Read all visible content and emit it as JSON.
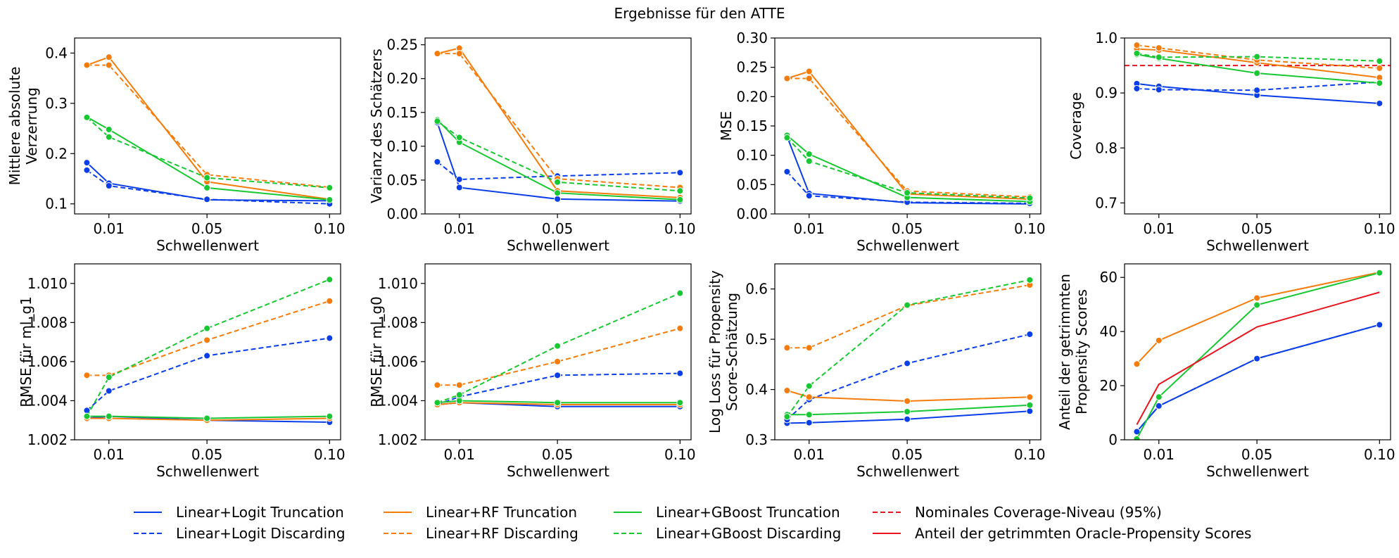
{
  "title": "Ergebnisse für den ATTE",
  "colors": {
    "logit": "#0a3ee8",
    "rf": "#f57c0a",
    "gboost": "#18c832",
    "oracle": "#e8141e",
    "nominal": "#e8141e"
  },
  "legend": {
    "placement": "bottom",
    "entries": [
      {
        "label": "Linear+Logit Truncation",
        "color": "#0a3ee8",
        "dash": false
      },
      {
        "label": "Linear+Logit Discarding",
        "color": "#0a3ee8",
        "dash": true
      },
      {
        "label": "Linear+RF Truncation",
        "color": "#f57c0a",
        "dash": false
      },
      {
        "label": "Linear+RF Discarding",
        "color": "#f57c0a",
        "dash": true
      },
      {
        "label": "Linear+GBoost Truncation",
        "color": "#18c832",
        "dash": false
      },
      {
        "label": "Linear+GBoost Discarding",
        "color": "#18c832",
        "dash": true
      },
      {
        "label": "Nominales Coverage-Niveau (95%)",
        "color": "#e8141e",
        "dash": true
      },
      {
        "label": "Anteil der getrimmten Oracle-Propensity Scores",
        "color": "#e8141e",
        "dash": false
      }
    ]
  },
  "chart_data": [
    {
      "type": "line",
      "ylabel": [
        "Mittlere absolute",
        "Verzerrung"
      ],
      "xlabel": "Schwellenwert",
      "x": [
        0.001,
        0.01,
        0.05,
        0.1
      ],
      "xticks": [
        0.01,
        0.05,
        0.1
      ],
      "xticklabels": [
        "0.01",
        "0.05",
        "0.10"
      ],
      "xlim": [
        -0.004,
        0.1045
      ],
      "ylim": [
        0.08,
        0.43
      ],
      "yticks": [
        0.1,
        0.2,
        0.3,
        0.4
      ],
      "yticklabels": [
        "0.1",
        "0.2",
        "0.3",
        "0.4"
      ],
      "series": [
        {
          "name": "Linear+Logit Truncation",
          "color": "logit",
          "dash": false,
          "values": [
            0.182,
            0.141,
            0.108,
            0.106
          ]
        },
        {
          "name": "Linear+Logit Discarding",
          "color": "logit",
          "dash": true,
          "values": [
            0.167,
            0.136,
            0.109,
            0.1
          ]
        },
        {
          "name": "Linear+RF Truncation",
          "color": "rf",
          "dash": false,
          "values": [
            0.376,
            0.392,
            0.144,
            0.109
          ]
        },
        {
          "name": "Linear+RF Discarding",
          "color": "rf",
          "dash": true,
          "values": [
            0.376,
            0.376,
            0.158,
            0.133
          ]
        },
        {
          "name": "Linear+GBoost Truncation",
          "color": "gboost",
          "dash": false,
          "values": [
            0.273,
            0.248,
            0.132,
            0.108
          ]
        },
        {
          "name": "Linear+GBoost Discarding",
          "color": "gboost",
          "dash": true,
          "values": [
            0.272,
            0.233,
            0.152,
            0.132
          ]
        }
      ]
    },
    {
      "type": "line",
      "ylabel": [
        "Varianz des Schätzers"
      ],
      "xlabel": "Schwellenwert",
      "x": [
        0.001,
        0.01,
        0.05,
        0.1
      ],
      "xticks": [
        0.01,
        0.05,
        0.1
      ],
      "xticklabels": [
        "0.01",
        "0.05",
        "0.10"
      ],
      "xlim": [
        -0.004,
        0.1045
      ],
      "ylim": [
        0.0,
        0.26
      ],
      "yticks": [
        0.0,
        0.05,
        0.1,
        0.15,
        0.2,
        0.25
      ],
      "yticklabels": [
        "0.00",
        "0.05",
        "0.10",
        "0.15",
        "0.20",
        "0.25"
      ],
      "series": [
        {
          "name": "Linear+Logit Truncation",
          "color": "logit",
          "dash": false,
          "values": [
            0.135,
            0.039,
            0.022,
            0.019
          ]
        },
        {
          "name": "Linear+Logit Discarding",
          "color": "logit",
          "dash": true,
          "values": [
            0.077,
            0.051,
            0.056,
            0.061
          ]
        },
        {
          "name": "Linear+RF Truncation",
          "color": "rf",
          "dash": false,
          "values": [
            0.237,
            0.245,
            0.034,
            0.024
          ]
        },
        {
          "name": "Linear+RF Discarding",
          "color": "rf",
          "dash": true,
          "values": [
            0.237,
            0.237,
            0.052,
            0.039
          ]
        },
        {
          "name": "Linear+GBoost Truncation",
          "color": "gboost",
          "dash": false,
          "values": [
            0.139,
            0.106,
            0.031,
            0.021
          ]
        },
        {
          "name": "Linear+GBoost Discarding",
          "color": "gboost",
          "dash": true,
          "values": [
            0.137,
            0.113,
            0.047,
            0.034
          ]
        }
      ]
    },
    {
      "type": "line",
      "ylabel": [
        "MSE"
      ],
      "xlabel": "Schwellenwert",
      "x": [
        0.001,
        0.01,
        0.05,
        0.1
      ],
      "xticks": [
        0.01,
        0.05,
        0.1
      ],
      "xticklabels": [
        "0.01",
        "0.05",
        "0.10"
      ],
      "xlim": [
        -0.004,
        0.1045
      ],
      "ylim": [
        0.0,
        0.3
      ],
      "yticks": [
        0.0,
        0.05,
        0.1,
        0.15,
        0.2,
        0.25,
        0.3
      ],
      "yticklabels": [
        "0.00",
        "0.05",
        "0.10",
        "0.15",
        "0.20",
        "0.25",
        "0.30"
      ],
      "series": [
        {
          "name": "Linear+Logit Truncation",
          "color": "logit",
          "dash": false,
          "values": [
            0.132,
            0.035,
            0.019,
            0.017
          ]
        },
        {
          "name": "Linear+Logit Discarding",
          "color": "logit",
          "dash": true,
          "values": [
            0.072,
            0.031,
            0.02,
            0.018
          ]
        },
        {
          "name": "Linear+RF Truncation",
          "color": "rf",
          "dash": false,
          "values": [
            0.231,
            0.243,
            0.034,
            0.025
          ]
        },
        {
          "name": "Linear+RF Discarding",
          "color": "rf",
          "dash": true,
          "values": [
            0.231,
            0.231,
            0.039,
            0.029
          ]
        },
        {
          "name": "Linear+GBoost Truncation",
          "color": "gboost",
          "dash": false,
          "values": [
            0.134,
            0.102,
            0.028,
            0.021
          ]
        },
        {
          "name": "Linear+GBoost Discarding",
          "color": "gboost",
          "dash": true,
          "values": [
            0.13,
            0.09,
            0.036,
            0.027
          ]
        }
      ]
    },
    {
      "type": "line",
      "ylabel": [
        "Coverage"
      ],
      "xlabel": "Schwellenwert",
      "x": [
        0.001,
        0.01,
        0.05,
        0.1
      ],
      "xticks": [
        0.01,
        0.05,
        0.1
      ],
      "xticklabels": [
        "0.01",
        "0.05",
        "0.10"
      ],
      "xlim": [
        -0.004,
        0.1045
      ],
      "ylim": [
        0.68,
        1.0
      ],
      "yticks": [
        0.7,
        0.8,
        0.9,
        1.0
      ],
      "yticklabels": [
        "0.7",
        "0.8",
        "0.9",
        "1.0"
      ],
      "hline": {
        "y": 0.95,
        "color": "nominal",
        "dash": true
      },
      "series": [
        {
          "name": "Linear+Logit Truncation",
          "color": "logit",
          "dash": false,
          "values": [
            0.917,
            0.912,
            0.896,
            0.881
          ]
        },
        {
          "name": "Linear+Logit Discarding",
          "color": "logit",
          "dash": true,
          "values": [
            0.908,
            0.906,
            0.905,
            0.92
          ]
        },
        {
          "name": "Linear+RF Truncation",
          "color": "rf",
          "dash": false,
          "values": [
            0.98,
            0.978,
            0.955,
            0.928
          ]
        },
        {
          "name": "Linear+RF Discarding",
          "color": "rf",
          "dash": true,
          "values": [
            0.987,
            0.982,
            0.96,
            0.945
          ]
        },
        {
          "name": "Linear+GBoost Truncation",
          "color": "gboost",
          "dash": false,
          "values": [
            0.97,
            0.963,
            0.936,
            0.918
          ]
        },
        {
          "name": "Linear+GBoost Discarding",
          "color": "gboost",
          "dash": true,
          "values": [
            0.972,
            0.965,
            0.966,
            0.958
          ]
        }
      ]
    },
    {
      "type": "line",
      "ylabel": [
        "RMSE für ml_g1"
      ],
      "xlabel": "Schwellenwert",
      "x": [
        0.001,
        0.01,
        0.05,
        0.1
      ],
      "xticks": [
        0.01,
        0.05,
        0.1
      ],
      "xticklabels": [
        "0.01",
        "0.05",
        "0.10"
      ],
      "xlim": [
        -0.004,
        0.1045
      ],
      "ylim": [
        1.002,
        1.011
      ],
      "yticks": [
        1.002,
        1.004,
        1.006,
        1.008,
        1.01
      ],
      "yticklabels": [
        "1.002",
        "1.004",
        "1.006",
        "1.008",
        "1.010"
      ],
      "series": [
        {
          "name": "Linear+Logit Truncation",
          "color": "logit",
          "dash": false,
          "values": [
            1.0031,
            1.0032,
            1.003,
            1.0029
          ]
        },
        {
          "name": "Linear+Logit Discarding",
          "color": "logit",
          "dash": true,
          "values": [
            1.0035,
            1.0045,
            1.0063,
            1.0072
          ]
        },
        {
          "name": "Linear+RF Truncation",
          "color": "rf",
          "dash": false,
          "values": [
            1.0031,
            1.0031,
            1.003,
            1.0031
          ]
        },
        {
          "name": "Linear+RF Discarding",
          "color": "rf",
          "dash": true,
          "values": [
            1.0053,
            1.0053,
            1.0071,
            1.0091
          ]
        },
        {
          "name": "Linear+GBoost Truncation",
          "color": "gboost",
          "dash": false,
          "values": [
            1.0032,
            1.0032,
            1.0031,
            1.0032
          ]
        },
        {
          "name": "Linear+GBoost Discarding",
          "color": "gboost",
          "dash": true,
          "values": [
            1.0032,
            1.0052,
            1.0077,
            1.0102
          ]
        }
      ]
    },
    {
      "type": "line",
      "ylabel": [
        "RMSE für ml_g0"
      ],
      "xlabel": "Schwellenwert",
      "x": [
        0.001,
        0.01,
        0.05,
        0.1
      ],
      "xticks": [
        0.01,
        0.05,
        0.1
      ],
      "xticklabels": [
        "0.01",
        "0.05",
        "0.10"
      ],
      "xlim": [
        -0.004,
        0.1045
      ],
      "ylim": [
        1.002,
        1.011
      ],
      "yticks": [
        1.002,
        1.004,
        1.006,
        1.008,
        1.01
      ],
      "yticklabels": [
        "1.002",
        "1.004",
        "1.006",
        "1.008",
        "1.010"
      ],
      "series": [
        {
          "name": "Linear+Logit Truncation",
          "color": "logit",
          "dash": false,
          "values": [
            1.0038,
            1.0039,
            1.0037,
            1.0037
          ]
        },
        {
          "name": "Linear+Logit Discarding",
          "color": "logit",
          "dash": true,
          "values": [
            1.0038,
            1.0042,
            1.0053,
            1.0054
          ]
        },
        {
          "name": "Linear+RF Truncation",
          "color": "rf",
          "dash": false,
          "values": [
            1.0038,
            1.0039,
            1.0038,
            1.0038
          ]
        },
        {
          "name": "Linear+RF Discarding",
          "color": "rf",
          "dash": true,
          "values": [
            1.0048,
            1.0048,
            1.006,
            1.0077
          ]
        },
        {
          "name": "Linear+GBoost Truncation",
          "color": "gboost",
          "dash": false,
          "values": [
            1.0039,
            1.004,
            1.0039,
            1.0039
          ]
        },
        {
          "name": "Linear+GBoost Discarding",
          "color": "gboost",
          "dash": true,
          "values": [
            1.0039,
            1.0043,
            1.0068,
            1.0095
          ]
        }
      ]
    },
    {
      "type": "line",
      "ylabel": [
        "Log Loss für Propensity",
        "Score-Schätzung"
      ],
      "xlabel": "Schwellenwert",
      "x": [
        0.001,
        0.01,
        0.05,
        0.1
      ],
      "xticks": [
        0.01,
        0.05,
        0.1
      ],
      "xticklabels": [
        "0.01",
        "0.05",
        "0.10"
      ],
      "xlim": [
        -0.004,
        0.1045
      ],
      "ylim": [
        0.3,
        0.65
      ],
      "yticks": [
        0.3,
        0.4,
        0.5,
        0.6
      ],
      "yticklabels": [
        "0.3",
        "0.4",
        "0.5",
        "0.6"
      ],
      "series": [
        {
          "name": "Linear+Logit Truncation",
          "color": "logit",
          "dash": false,
          "values": [
            0.333,
            0.334,
            0.341,
            0.357
          ]
        },
        {
          "name": "Linear+Logit Discarding",
          "color": "logit",
          "dash": true,
          "values": [
            0.34,
            0.38,
            0.452,
            0.51
          ]
        },
        {
          "name": "Linear+RF Truncation",
          "color": "rf",
          "dash": false,
          "values": [
            0.398,
            0.385,
            0.377,
            0.385
          ]
        },
        {
          "name": "Linear+RF Discarding",
          "color": "rf",
          "dash": true,
          "values": [
            0.483,
            0.483,
            0.567,
            0.608
          ]
        },
        {
          "name": "Linear+GBoost Truncation",
          "color": "gboost",
          "dash": false,
          "values": [
            0.35,
            0.35,
            0.356,
            0.369
          ]
        },
        {
          "name": "Linear+GBoost Discarding",
          "color": "gboost",
          "dash": true,
          "values": [
            0.346,
            0.407,
            0.568,
            0.618
          ]
        }
      ]
    },
    {
      "type": "line",
      "ylabel": [
        "Anteil der getrimmten",
        "Propensity Scores"
      ],
      "xlabel": "Schwellenwert",
      "x": [
        0.001,
        0.01,
        0.05,
        0.1
      ],
      "xticks": [
        0.01,
        0.05,
        0.1
      ],
      "xticklabels": [
        "0.01",
        "0.05",
        "0.10"
      ],
      "xlim": [
        -0.004,
        0.1045
      ],
      "ylim": [
        0,
        65
      ],
      "yticks": [
        0,
        20,
        40,
        60
      ],
      "yticklabels": [
        "0",
        "20",
        "40",
        "60"
      ],
      "series": [
        {
          "name": "Linear+Logit Truncation",
          "color": "logit",
          "dash": false,
          "values": [
            3,
            12.5,
            30,
            42.5
          ]
        },
        {
          "name": "Linear+Logit Discarding",
          "color": "logit",
          "dash": true,
          "values": [
            3,
            12.5,
            30,
            42.5
          ]
        },
        {
          "name": "Linear+RF Truncation",
          "color": "rf",
          "dash": false,
          "values": [
            28,
            36.7,
            52.4,
            61.9
          ]
        },
        {
          "name": "Linear+GBoost Truncation",
          "color": "gboost",
          "dash": false,
          "values": [
            0.3,
            15.8,
            49.8,
            61.7
          ]
        },
        {
          "name": "Anteil der getrimmten Oracle-Propensity Scores",
          "color": "oracle",
          "dash": false,
          "markers": false,
          "values": [
            5.6,
            20.5,
            41.7,
            54.5
          ]
        }
      ]
    }
  ]
}
